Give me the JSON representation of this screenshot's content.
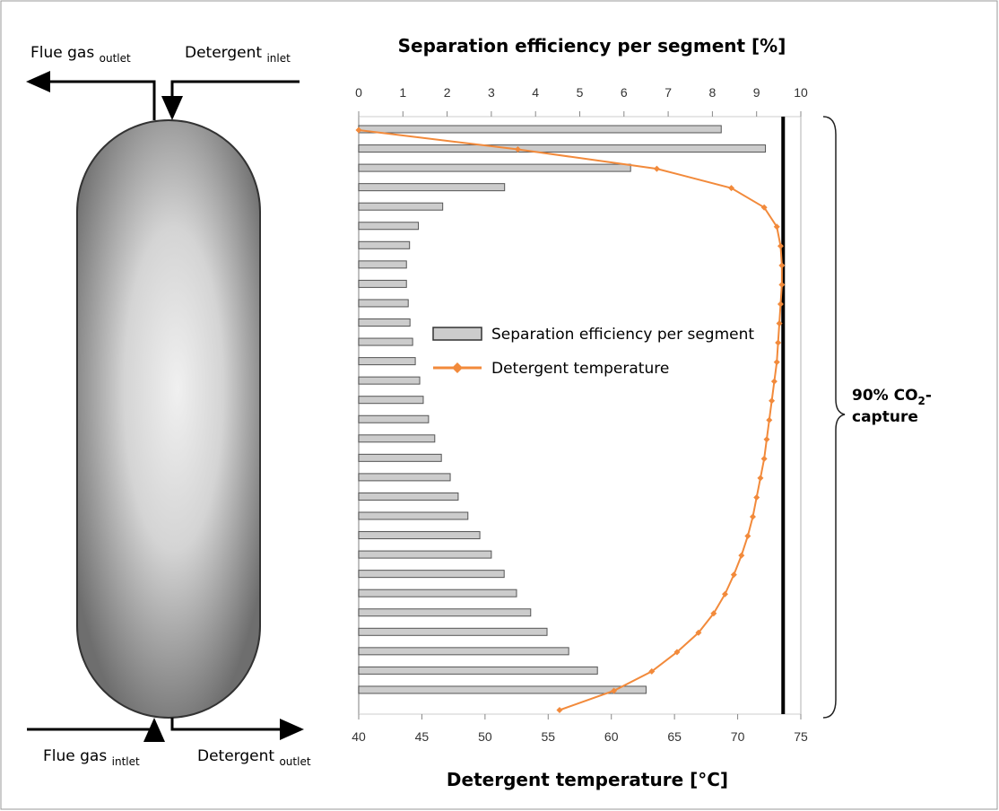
{
  "diagram": {
    "flue_gas_outlet": {
      "text": "Flue gas",
      "sub": "outlet"
    },
    "detergent_inlet": {
      "text": "Detergent",
      "sub": "inlet"
    },
    "flue_gas_inlet": {
      "text": "Flue gas",
      "sub": "intlet"
    },
    "detergent_outlet": {
      "text": "Detergent",
      "sub": "outlet"
    }
  },
  "chart_data": {
    "type": "bar",
    "orientation": "horizontal",
    "title": "Separation efficiency per segment [%]",
    "x2_title": "Detergent temperature [°C]",
    "xlim": [
      0,
      10
    ],
    "xticks": [
      0,
      1,
      2,
      3,
      4,
      5,
      6,
      7,
      8,
      9,
      10
    ],
    "x2lim": [
      40,
      75
    ],
    "x2ticks": [
      40,
      45,
      50,
      55,
      60,
      65,
      70,
      75
    ],
    "reference_x": 9.6,
    "brace_label": {
      "text": "90% CO",
      "sub": "2",
      "rest": "-",
      "line2": "capture"
    },
    "series": [
      {
        "name": "Separation efficiency per segment",
        "type": "bar",
        "color": "#cccccc",
        "values": [
          8.2,
          9.2,
          6.15,
          3.3,
          1.9,
          1.35,
          1.15,
          1.08,
          1.08,
          1.12,
          1.16,
          1.22,
          1.28,
          1.38,
          1.46,
          1.58,
          1.72,
          1.87,
          2.07,
          2.25,
          2.47,
          2.74,
          3.0,
          3.29,
          3.57,
          3.89,
          4.26,
          4.75,
          5.4,
          6.5
        ]
      },
      {
        "name": "Detergent temperature",
        "type": "line",
        "axis": "x2",
        "color": "#f28a3b",
        "values": [
          40.0,
          52.6,
          63.6,
          69.5,
          72.1,
          73.1,
          73.4,
          73.5,
          73.5,
          73.4,
          73.3,
          73.2,
          73.1,
          72.9,
          72.7,
          72.5,
          72.3,
          72.1,
          71.8,
          71.5,
          71.2,
          70.8,
          70.3,
          69.7,
          69.0,
          68.1,
          66.9,
          65.2,
          63.2,
          60.2,
          55.9
        ]
      }
    ]
  }
}
